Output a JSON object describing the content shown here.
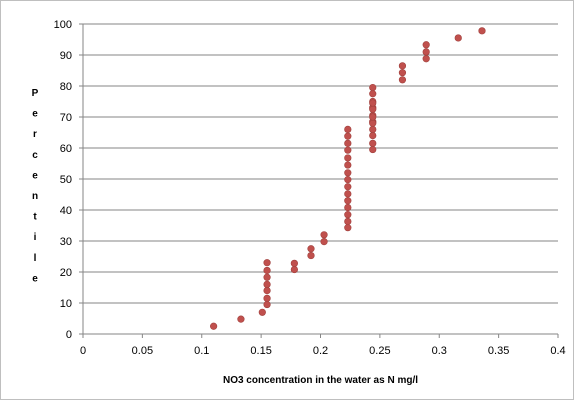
{
  "chart_data": {
    "type": "scatter",
    "xlabel": "NO3 concentration in the water as N mg/l",
    "ylabel": "Percentile",
    "xlim": [
      0,
      0.4
    ],
    "ylim": [
      0,
      100
    ],
    "x_ticks": [
      "0",
      "0.05",
      "0.1",
      "0.15",
      "0.2",
      "0.25",
      "0.3",
      "0.35",
      "0.4"
    ],
    "y_ticks": [
      "0",
      "10",
      "20",
      "30",
      "40",
      "50",
      "60",
      "70",
      "80",
      "90",
      "100"
    ],
    "grid": "horizontal",
    "legend": "none",
    "marker_color": "#C0504D",
    "series": [
      {
        "x": [
          0.11,
          0.133,
          0.151,
          0.155,
          0.155,
          0.155,
          0.155,
          0.155,
          0.155,
          0.155,
          0.178,
          0.178,
          0.192,
          0.192,
          0.203,
          0.203,
          0.223,
          0.223,
          0.223,
          0.223,
          0.223,
          0.223,
          0.223,
          0.223,
          0.223,
          0.223,
          0.223,
          0.223,
          0.223,
          0.223,
          0.223,
          0.244,
          0.244,
          0.244,
          0.244,
          0.244,
          0.244,
          0.244,
          0.244,
          0.244,
          0.244,
          0.244,
          0.244,
          0.244,
          0.244,
          0.269,
          0.269,
          0.269,
          0.289,
          0.289,
          0.289,
          0.316,
          0.336
        ],
        "y": [
          2.5,
          4.8,
          7.0,
          9.5,
          11.5,
          14.0,
          16.0,
          18.3,
          20.5,
          23.0,
          20.8,
          22.8,
          25.3,
          27.5,
          29.8,
          32.0,
          34.3,
          36.3,
          38.5,
          40.8,
          43.0,
          45.2,
          47.5,
          49.8,
          52.0,
          54.5,
          56.8,
          59.3,
          61.5,
          63.8,
          66.0,
          59.5,
          61.5,
          64.0,
          66.0,
          68.5,
          70.5,
          73.0,
          75.0,
          77.5,
          79.5,
          68.0,
          70.0,
          72.5,
          74.5,
          82.0,
          84.3,
          86.5,
          88.8,
          91.0,
          93.3,
          95.5,
          97.8
        ]
      }
    ]
  }
}
